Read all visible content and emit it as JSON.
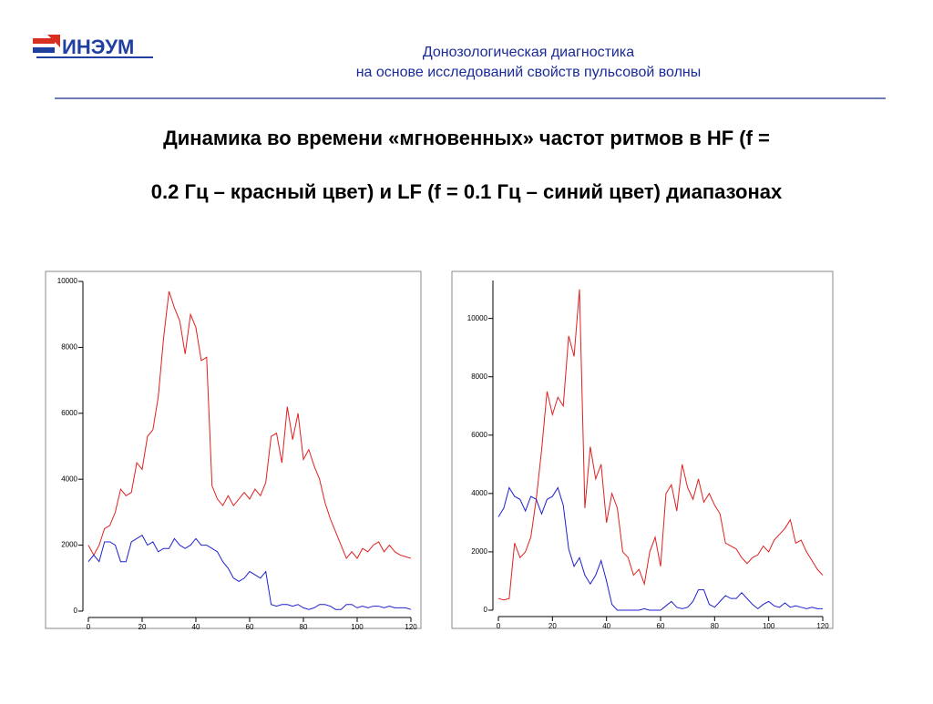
{
  "logo": "ИНЭУМ",
  "header": {
    "line1": "Донозологическая диагностика",
    "line2": "на основе исследований свойств пульсовой волны"
  },
  "title": {
    "line1": "Динамика во времени «мгновенных» частот ритмов в HF (f =",
    "line2": "0.2 Гц – красный цвет) и LF (f = 0.1 Гц – синий цвет) диапазонах"
  },
  "chart_data": [
    {
      "type": "line",
      "x": [
        0,
        2,
        4,
        6,
        8,
        10,
        12,
        14,
        16,
        18,
        20,
        22,
        24,
        26,
        28,
        30,
        32,
        34,
        36,
        38,
        40,
        42,
        44,
        46,
        48,
        50,
        52,
        54,
        56,
        58,
        60,
        62,
        64,
        66,
        68,
        70,
        72,
        74,
        76,
        78,
        80,
        82,
        84,
        86,
        88,
        90,
        92,
        94,
        96,
        98,
        100,
        102,
        104,
        106,
        108,
        110,
        112,
        114,
        116,
        118,
        120
      ],
      "xlim": [
        0,
        120
      ],
      "xticks": [
        0,
        20,
        40,
        60,
        80,
        100,
        120
      ],
      "ylim": [
        0,
        10000
      ],
      "yticks": [
        0,
        2000,
        4000,
        6000,
        8000,
        10000
      ],
      "series": [
        {
          "color": "#e02020",
          "values": [
            2000,
            1700,
            2000,
            2500,
            2600,
            3000,
            3700,
            3500,
            3600,
            4500,
            4300,
            5300,
            5500,
            6500,
            8300,
            9700,
            9200,
            8800,
            7800,
            9000,
            8600,
            7600,
            7700,
            3800,
            3400,
            3200,
            3500,
            3200,
            3400,
            3600,
            3400,
            3700,
            3500,
            3900,
            5300,
            5400,
            4500,
            6200,
            5200,
            6000,
            4600,
            4900,
            4400,
            4000,
            3300,
            2800,
            2400,
            2000,
            1600,
            1800,
            1600,
            1900,
            1800,
            2000,
            2100,
            1800,
            2000,
            1800,
            1700,
            1650,
            1600
          ]
        },
        {
          "color": "#2020d0",
          "values": [
            1500,
            1700,
            1500,
            2100,
            2100,
            2000,
            1500,
            1500,
            2100,
            2200,
            2300,
            2000,
            2100,
            1800,
            1900,
            1900,
            2200,
            2000,
            1900,
            2000,
            2200,
            2000,
            2000,
            1900,
            1800,
            1500,
            1300,
            1000,
            900,
            1000,
            1200,
            1100,
            1000,
            1200,
            200,
            150,
            200,
            200,
            150,
            200,
            100,
            50,
            100,
            200,
            200,
            150,
            50,
            50,
            200,
            200,
            100,
            150,
            100,
            150,
            150,
            100,
            150,
            100,
            100,
            100,
            50
          ]
        }
      ]
    },
    {
      "type": "line",
      "x": [
        0,
        2,
        4,
        6,
        8,
        10,
        12,
        14,
        16,
        18,
        20,
        22,
        24,
        26,
        28,
        30,
        32,
        34,
        36,
        38,
        40,
        42,
        44,
        46,
        48,
        50,
        52,
        54,
        56,
        58,
        60,
        62,
        64,
        66,
        68,
        70,
        72,
        74,
        76,
        78,
        80,
        82,
        84,
        86,
        88,
        90,
        92,
        94,
        96,
        98,
        100,
        102,
        104,
        106,
        108,
        110,
        112,
        114,
        116,
        118,
        120
      ],
      "xlim": [
        0,
        120
      ],
      "xticks": [
        0,
        20,
        40,
        60,
        80,
        100,
        120
      ],
      "ylim": [
        0,
        11300
      ],
      "yticks": [
        0,
        2000,
        4000,
        6000,
        8000,
        10000
      ],
      "series": [
        {
          "color": "#e02020",
          "values": [
            400,
            350,
            400,
            2300,
            1800,
            2000,
            2500,
            3800,
            5500,
            7500,
            6700,
            7300,
            7000,
            9400,
            8700,
            11000,
            3500,
            5600,
            4500,
            5000,
            3000,
            4000,
            3500,
            2000,
            1800,
            1200,
            1400,
            900,
            2000,
            2500,
            1500,
            4000,
            4300,
            3400,
            5000,
            4200,
            3800,
            4500,
            3700,
            4000,
            3600,
            3300,
            2300,
            2200,
            2100,
            1800,
            1600,
            1800,
            1900,
            2200,
            2000,
            2400,
            2600,
            2800,
            3100,
            2300,
            2400,
            2000,
            1700,
            1400,
            1200
          ]
        },
        {
          "color": "#2020d0",
          "values": [
            3200,
            3500,
            4200,
            3900,
            3800,
            3400,
            3900,
            3800,
            3300,
            3800,
            3900,
            4200,
            3600,
            2100,
            1500,
            1800,
            1200,
            900,
            1200,
            1700,
            1000,
            200,
            0,
            0,
            0,
            0,
            0,
            50,
            0,
            0,
            0,
            150,
            300,
            100,
            50,
            100,
            300,
            700,
            700,
            200,
            100,
            300,
            500,
            400,
            400,
            600,
            400,
            200,
            50,
            200,
            300,
            150,
            100,
            250,
            100,
            150,
            100,
            50,
            100,
            50,
            50
          ]
        }
      ]
    }
  ]
}
